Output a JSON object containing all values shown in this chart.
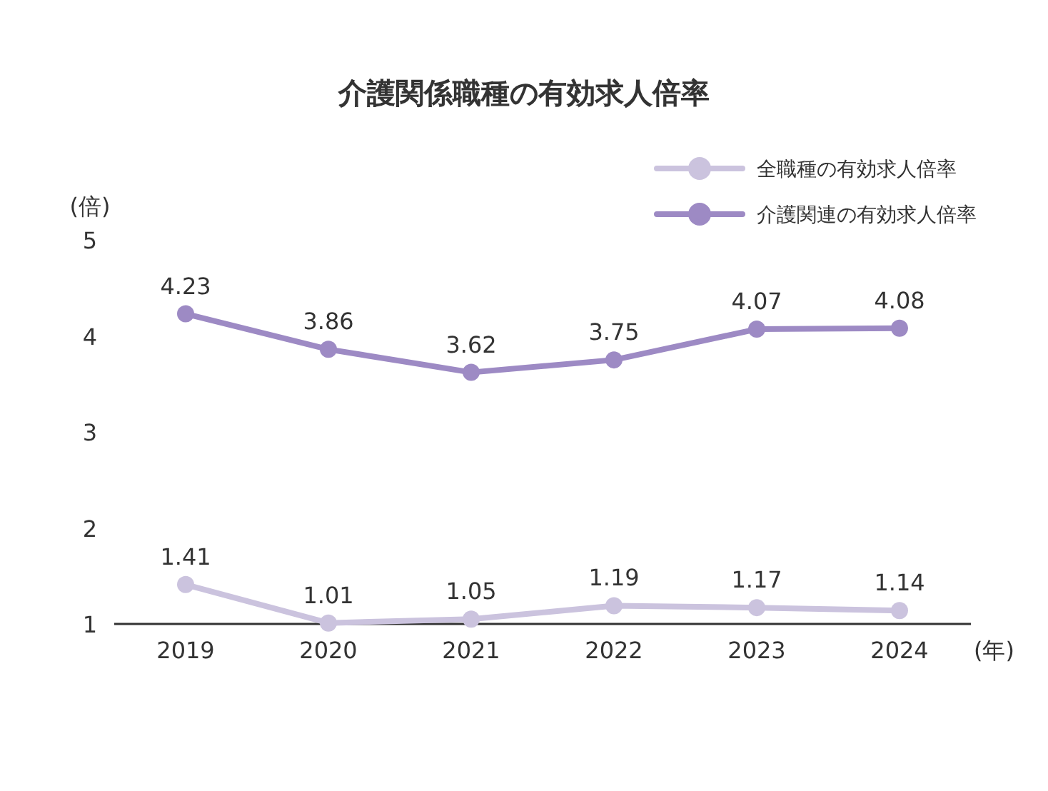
{
  "chart_data": {
    "type": "line",
    "title": "介護関係職種の有効求人倍率",
    "xlabel": "(年)",
    "ylabel": "(倍)",
    "categories": [
      "2019",
      "2020",
      "2021",
      "2022",
      "2023",
      "2024"
    ],
    "series": [
      {
        "name": "全職種の有効求人倍率",
        "color": "#cbc3de",
        "values": [
          1.41,
          1.01,
          1.05,
          1.19,
          1.17,
          1.14
        ]
      },
      {
        "name": "介護関連の有効求人倍率",
        "color": "#9d8ac4",
        "values": [
          4.23,
          3.86,
          3.62,
          3.75,
          4.07,
          4.08
        ]
      }
    ],
    "ylim": [
      1,
      5
    ],
    "yticks": [
      1,
      2,
      3,
      4,
      5
    ],
    "legend": "top right",
    "marker": "circle",
    "data_labels": true
  }
}
